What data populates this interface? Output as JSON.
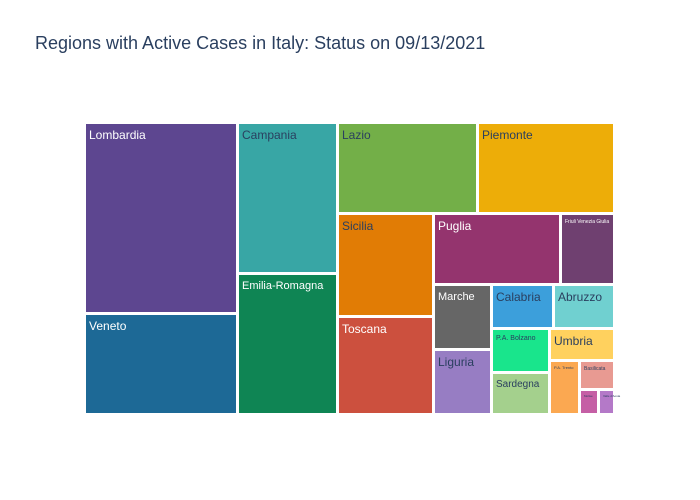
{
  "chart_data": {
    "type": "treemap",
    "title": "Regions with Active Cases in Italy: Status on 09/13/2021",
    "tiles": [
      {
        "label": "Lombardia",
        "color": "#5d4690",
        "text": "light",
        "fs": 12
      },
      {
        "label": "Veneto",
        "color": "#1d6996",
        "text": "light",
        "fs": 12
      },
      {
        "label": "Campania",
        "color": "#38a6a5",
        "text": "dark",
        "fs": 12
      },
      {
        "label": "Emilia-Romagna",
        "color": "#0f8554",
        "text": "light",
        "fs": 11
      },
      {
        "label": "Lazio",
        "color": "#73af48",
        "text": "dark",
        "fs": 12
      },
      {
        "label": "Piemonte",
        "color": "#edad08",
        "text": "dark",
        "fs": 12
      },
      {
        "label": "Sicilia",
        "color": "#e17c05",
        "text": "dark",
        "fs": 12
      },
      {
        "label": "Toscana",
        "color": "#cc503e",
        "text": "light",
        "fs": 12
      },
      {
        "label": "Puglia",
        "color": "#94346e",
        "text": "light",
        "fs": 12
      },
      {
        "label": "Friuli Venezia Giulia",
        "color": "#6f4070",
        "text": "light",
        "fs": 5
      },
      {
        "label": "Marche",
        "color": "#666666",
        "text": "light",
        "fs": 11
      },
      {
        "label": "Liguria",
        "color": "#977dc3",
        "text": "dark",
        "fs": 12
      },
      {
        "label": "Calabria",
        "color": "#3c9fdb",
        "text": "dark",
        "fs": 12
      },
      {
        "label": "P.A. Bolzano",
        "color": "#19e58c",
        "text": "dark",
        "fs": 7
      },
      {
        "label": "Sardegna",
        "color": "#a4d08d",
        "text": "dark",
        "fs": 10
      },
      {
        "label": "Abruzzo",
        "color": "#70d0d0",
        "text": "dark",
        "fs": 12
      },
      {
        "label": "Umbria",
        "color": "#ffd15e",
        "text": "dark",
        "fs": 12
      },
      {
        "label": "P.A. Trento",
        "color": "#fba851",
        "text": "dark",
        "fs": 4
      },
      {
        "label": "Basilicata",
        "color": "#e89a92",
        "text": "dark",
        "fs": 5
      },
      {
        "label": "Molise",
        "color": "#c55fa5",
        "text": "dark",
        "fs": 3
      },
      {
        "label": "Valle d'Aosta",
        "color": "#b479c8",
        "text": "dark",
        "fs": 3
      }
    ]
  }
}
